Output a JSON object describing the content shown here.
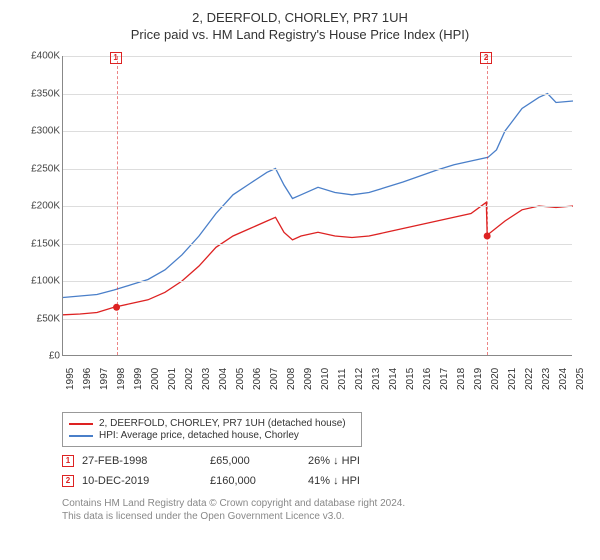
{
  "title": "2, DEERFOLD, CHORLEY, PR7 1UH",
  "subtitle": "Price paid vs. HM Land Registry's House Price Index (HPI)",
  "chart": {
    "type": "line",
    "background_color": "#ffffff",
    "grid_color": "#dddddd",
    "axis_color": "#888888",
    "text_color": "#333333",
    "ylim": [
      0,
      400000
    ],
    "ytick_step": 50000,
    "yticks": [
      "£0",
      "£50K",
      "£100K",
      "£150K",
      "£200K",
      "£250K",
      "£300K",
      "£350K",
      "£400K"
    ],
    "xlim": [
      1995,
      2025
    ],
    "xticks": [
      "1995",
      "1996",
      "1997",
      "1998",
      "1999",
      "2000",
      "2001",
      "2002",
      "2003",
      "2004",
      "2005",
      "2006",
      "2007",
      "2008",
      "2009",
      "2010",
      "2011",
      "2012",
      "2013",
      "2014",
      "2015",
      "2016",
      "2017",
      "2018",
      "2019",
      "2020",
      "2021",
      "2022",
      "2023",
      "2024",
      "2025"
    ],
    "label_fontsize": 10,
    "title_fontsize": 13,
    "series": [
      {
        "name": "hpi",
        "label": "HPI: Average price, detached house, Chorley",
        "color": "#4a7fc9",
        "line_width": 1.3,
        "x": [
          1995,
          1996,
          1997,
          1998,
          1999,
          2000,
          2001,
          2002,
          2003,
          2004,
          2005,
          2006,
          2007,
          2007.5,
          2008,
          2008.5,
          2009,
          2010,
          2011,
          2012,
          2013,
          2014,
          2015,
          2016,
          2017,
          2018,
          2019,
          2020,
          2020.5,
          2021,
          2022,
          2023,
          2023.5,
          2024,
          2025
        ],
        "y": [
          78000,
          80000,
          82000,
          88000,
          95000,
          102000,
          115000,
          135000,
          160000,
          190000,
          215000,
          230000,
          245000,
          250000,
          228000,
          210000,
          215000,
          225000,
          218000,
          215000,
          218000,
          225000,
          232000,
          240000,
          248000,
          255000,
          260000,
          265000,
          275000,
          300000,
          330000,
          345000,
          350000,
          338000,
          340000
        ]
      },
      {
        "name": "price_paid",
        "label": "2, DEERFOLD, CHORLEY, PR7 1UH (detached house)",
        "color": "#dd2222",
        "line_width": 1.3,
        "x": [
          1995,
          1996,
          1997,
          1998,
          1999,
          2000,
          2001,
          2002,
          2003,
          2004,
          2005,
          2006,
          2007,
          2007.5,
          2008,
          2008.5,
          2009,
          2010,
          2011,
          2012,
          2013,
          2014,
          2015,
          2016,
          2017,
          2018,
          2019,
          2019.9,
          2019.95,
          2020,
          2021,
          2022,
          2023,
          2024,
          2025
        ],
        "y": [
          55000,
          56000,
          58000,
          65000,
          70000,
          75000,
          85000,
          100000,
          120000,
          145000,
          160000,
          170000,
          180000,
          185000,
          165000,
          155000,
          160000,
          165000,
          160000,
          158000,
          160000,
          165000,
          170000,
          175000,
          180000,
          185000,
          190000,
          205000,
          160000,
          162000,
          180000,
          195000,
          200000,
          198000,
          200000
        ]
      }
    ],
    "markers": [
      {
        "n": "1",
        "x_year": 1998.15,
        "color": "#dd2222"
      },
      {
        "n": "2",
        "x_year": 2019.95,
        "color": "#dd2222"
      }
    ],
    "sale_dots": [
      {
        "x_year": 1998.15,
        "y_value": 65000
      },
      {
        "x_year": 2019.95,
        "y_value": 160000
      }
    ]
  },
  "legend": {
    "series1_color": "#dd2222",
    "series1_label": "2, DEERFOLD, CHORLEY, PR7 1UH (detached house)",
    "series2_color": "#4a7fc9",
    "series2_label": "HPI: Average price, detached house, Chorley"
  },
  "sales": [
    {
      "n": "1",
      "date": "27-FEB-1998",
      "price": "£65,000",
      "pct": "26% ↓ HPI",
      "box_color": "#dd2222"
    },
    {
      "n": "2",
      "date": "10-DEC-2019",
      "price": "£160,000",
      "pct": "41% ↓ HPI",
      "box_color": "#dd2222"
    }
  ],
  "footnote_line1": "Contains HM Land Registry data © Crown copyright and database right 2024.",
  "footnote_line2": "This data is licensed under the Open Government Licence v3.0."
}
